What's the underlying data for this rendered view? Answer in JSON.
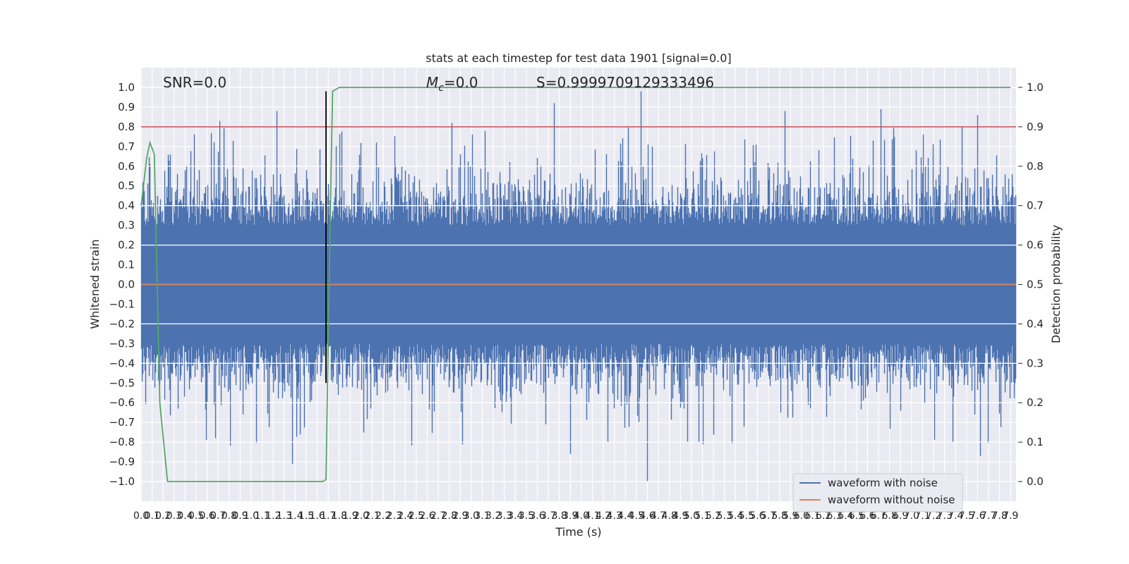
{
  "chart_data": {
    "type": "line",
    "title": "stats at each timestep for test data 1901 [signal=0.0]",
    "xlabel": "Time (s)",
    "ylabel": "Whitened strain",
    "y2label": "Detection probability",
    "xlim": [
      0,
      7.95
    ],
    "ylim": [
      -1.1,
      1.1
    ],
    "y2lim": [
      -0.05,
      1.05
    ],
    "grid": true,
    "legend_placement": "lower-right",
    "x_ticks": [
      "0.0",
      "0.1",
      "0.2",
      "0.3",
      "0.4",
      "0.5",
      "0.6",
      "0.7",
      "0.8",
      "0.9",
      "1.0",
      "1.1",
      "1.2",
      "1.3",
      "1.4",
      "1.5",
      "1.6",
      "1.7",
      "1.8",
      "1.9",
      "2.0",
      "2.1",
      "2.2",
      "2.3",
      "2.4",
      "2.5",
      "2.6",
      "2.7",
      "2.8",
      "2.9",
      "3.0",
      "3.1",
      "3.2",
      "3.3",
      "3.4",
      "3.5",
      "3.6",
      "3.7",
      "3.8",
      "3.9",
      "4.0",
      "4.1",
      "4.2",
      "4.3",
      "4.4",
      "4.5",
      "4.6",
      "4.7",
      "4.8",
      "4.9",
      "5.0",
      "5.1",
      "5.2",
      "5.3",
      "5.4",
      "5.5",
      "5.6",
      "5.7",
      "5.8",
      "5.9",
      "6.0",
      "6.1",
      "6.2",
      "6.3",
      "6.4",
      "6.5",
      "6.6",
      "6.7",
      "6.8",
      "6.9",
      "7.0",
      "7.1",
      "7.2",
      "7.3",
      "7.4",
      "7.5",
      "7.6",
      "7.7",
      "7.8",
      "7.9"
    ],
    "y_ticks": [
      "1.0",
      "0.9",
      "0.8",
      "0.7",
      "0.6",
      "0.5",
      "0.4",
      "0.3",
      "0.2",
      "0.1",
      "0.0",
      "−0.1",
      "−0.2",
      "−0.3",
      "−0.4",
      "−0.5",
      "−0.6",
      "−0.7",
      "−0.8",
      "−0.9",
      "−1.0"
    ],
    "y2_ticks": [
      "1.0",
      "0.9",
      "0.8",
      "0.7",
      "0.6",
      "0.5",
      "0.4",
      "0.3",
      "0.2",
      "0.1",
      "0.0"
    ],
    "annotations": {
      "snr": "SNR=0.0",
      "mc_symbol": "M",
      "mc_subscript": "c",
      "mc_value": "=0.0",
      "s": "S=0.9999709129333496"
    },
    "series": [
      {
        "name": "waveform with noise",
        "color": "#4c72b0",
        "kind": "noise",
        "amplitude_envelope": [
          -1.0,
          0.98
        ],
        "peaks": [
          {
            "x": 0.71,
            "y": 0.83
          },
          {
            "x": 1.23,
            "y": 0.88
          },
          {
            "x": 2.82,
            "y": 0.82
          },
          {
            "x": 3.75,
            "y": 0.92
          },
          {
            "x": 4.54,
            "y": 0.98
          },
          {
            "x": 5.85,
            "y": 0.88
          },
          {
            "x": 6.72,
            "y": 0.89
          },
          {
            "x": 7.6,
            "y": 0.86
          },
          {
            "x": 4.6,
            "y": -1.0
          },
          {
            "x": 1.37,
            "y": -0.91
          },
          {
            "x": 3.9,
            "y": -0.86
          },
          {
            "x": 7.62,
            "y": -0.87
          }
        ]
      },
      {
        "name": "waveform without noise",
        "color": "#dd8452",
        "x": [
          0,
          7.95
        ],
        "y": [
          0.0,
          0.0
        ]
      },
      {
        "name": "",
        "color": "#55a868",
        "axis": "y2",
        "x": [
          0.0,
          0.05,
          0.08,
          0.12,
          0.17,
          0.24,
          0.28,
          1.65,
          1.68,
          1.72,
          1.74,
          1.8,
          7.9
        ],
        "y": [
          0.7,
          0.82,
          0.86,
          0.83,
          0.2,
          0.0,
          0.0,
          0.0,
          0.005,
          0.7,
          0.99,
          1.0,
          1.0
        ]
      }
    ],
    "threshold_line": {
      "axis": "y2",
      "value": 0.9,
      "color": "#c44e52"
    },
    "marker_line": {
      "x": 1.68,
      "y_range": [
        -0.5,
        0.98
      ],
      "color": "#000000"
    }
  }
}
